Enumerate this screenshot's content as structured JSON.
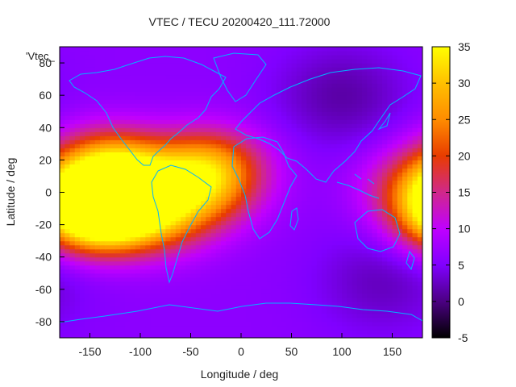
{
  "chart_data": {
    "type": "heatmap",
    "title": "VTEC / TECU 20200420_111.72000",
    "xlabel": "Longitude / deg",
    "ylabel": "Latitude / deg",
    "legend_key": "'Vtec_",
    "xlim": [
      -180,
      180
    ],
    "ylim": [
      -90,
      90
    ],
    "x_ticks": [
      -150,
      -100,
      -50,
      0,
      50,
      100,
      150
    ],
    "y_ticks": [
      -80,
      -60,
      -40,
      -20,
      0,
      20,
      40,
      60,
      80
    ],
    "colorbar": {
      "range": [
        -5,
        35
      ],
      "ticks": [
        -5,
        0,
        5,
        10,
        15,
        20,
        25,
        30,
        35
      ],
      "palette": [
        "#000000",
        "#4b0082",
        "#8000ff",
        "#c000ff",
        "#d0288a",
        "#e83c00",
        "#ff8c00",
        "#ffc000",
        "#ffff00"
      ]
    },
    "background_vtec": 6,
    "features": [
      {
        "name": "pacific-equatorial-anomaly-south",
        "lon": -150,
        "lat": -13,
        "vtec": 34
      },
      {
        "name": "pacific-southern-crest",
        "lon": -130,
        "lat": -12,
        "vtec": 27
      },
      {
        "name": "equatorial-pacific-center",
        "lon": -110,
        "lat": 5,
        "vtec": 24
      },
      {
        "name": "northern-crest-central",
        "lon": -130,
        "lat": 18,
        "vtec": 25
      },
      {
        "name": "atlantic-north-crest",
        "lon": -32,
        "lat": 17,
        "vtec": 26
      },
      {
        "name": "atlantic-central",
        "lon": -40,
        "lat": 0,
        "vtec": 20
      },
      {
        "name": "south-america-band",
        "lon": -80,
        "lat": -15,
        "vtec": 20
      },
      {
        "name": "east-edge-dayside",
        "lon": 178,
        "lat": 5,
        "vtec": 18
      },
      {
        "name": "asia-night-low",
        "lon": 100,
        "lat": 60,
        "vtec": 1
      },
      {
        "name": "australia-night-low",
        "lon": 140,
        "lat": -55,
        "vtec": 2
      }
    ]
  }
}
